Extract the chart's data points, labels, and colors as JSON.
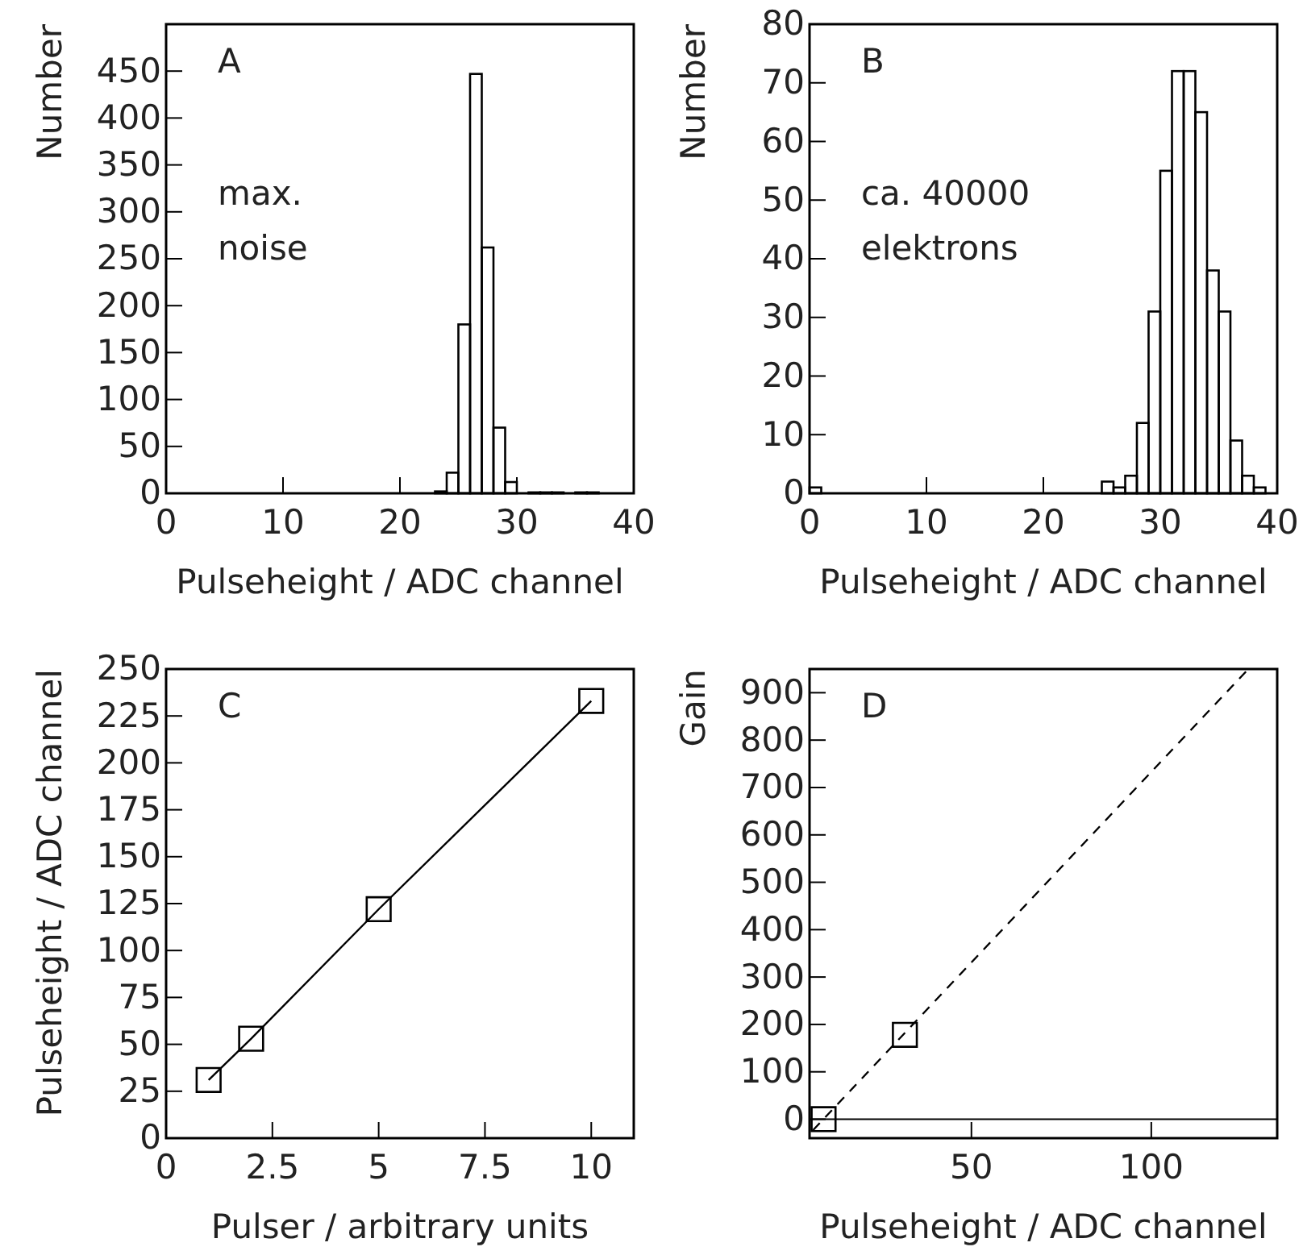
{
  "chart_data": [
    {
      "type": "histogram",
      "xlabel": "Pulseheight / ADC channel",
      "ylabel": "Number",
      "annotations": [
        "A",
        "max.",
        "noise"
      ],
      "bins": [
        0,
        1,
        2,
        3,
        4,
        5,
        6,
        7,
        8,
        9,
        10,
        11,
        12,
        13,
        14,
        15,
        16,
        17,
        18,
        19,
        20,
        21,
        22,
        23,
        24,
        25,
        26,
        27,
        28,
        29,
        30,
        31,
        32,
        33,
        34,
        35,
        36,
        37,
        38,
        39,
        40
      ],
      "values": [
        0,
        0,
        0,
        0,
        0,
        0,
        0,
        0,
        0,
        0,
        0,
        0,
        0,
        0,
        0,
        0,
        0,
        0,
        0,
        0,
        0,
        0,
        0,
        2,
        22,
        180,
        447,
        262,
        70,
        12,
        0,
        1,
        1,
        1,
        0,
        1,
        1,
        0,
        0,
        0
      ],
      "color": "#000000",
      "xlim": [
        0,
        40
      ],
      "xticks": [
        0,
        10,
        20,
        30,
        40
      ],
      "ylim": [
        0,
        500
      ],
      "yticks": [
        0,
        50,
        100,
        150,
        200,
        250,
        300,
        350,
        400,
        450
      ]
    },
    {
      "type": "histogram",
      "xlabel": "Pulseheight / ADC channel",
      "ylabel": "Number",
      "annotations": [
        "B",
        "ca. 40000",
        "elektrons"
      ],
      "bins": [
        0,
        1,
        2,
        3,
        4,
        5,
        6,
        7,
        8,
        9,
        10,
        11,
        12,
        13,
        14,
        15,
        16,
        17,
        18,
        19,
        20,
        21,
        22,
        23,
        24,
        25,
        26,
        27,
        28,
        29,
        30,
        31,
        32,
        33,
        34,
        35,
        36,
        37,
        38,
        39,
        40
      ],
      "values": [
        1,
        0,
        0,
        0,
        0,
        0,
        0,
        0,
        0,
        0,
        0,
        0,
        0,
        0,
        0,
        0,
        0,
        0,
        0,
        0,
        0,
        0,
        0,
        0,
        0,
        2,
        1,
        3,
        12,
        31,
        55,
        72,
        72,
        65,
        38,
        31,
        9,
        3,
        1,
        0
      ],
      "color": "#000000",
      "xlim": [
        0,
        40
      ],
      "xticks": [
        0,
        10,
        20,
        30,
        40
      ],
      "ylim": [
        0,
        80
      ],
      "yticks": [
        0,
        10,
        20,
        30,
        40,
        50,
        60,
        70,
        80
      ]
    },
    {
      "type": "line",
      "xlabel": "Pulser / arbitrary units",
      "ylabel": "Pulseheight / ADC channel",
      "annotations": [
        "C"
      ],
      "x": [
        1,
        2,
        5,
        10
      ],
      "values": [
        31,
        53,
        122,
        233
      ],
      "color": "#000000",
      "marker": "square",
      "xlim": [
        0,
        11
      ],
      "xticks": [
        0,
        2.5,
        5,
        7.5,
        10
      ],
      "ylim": [
        0,
        250
      ],
      "yticks": [
        0,
        25,
        50,
        75,
        100,
        125,
        150,
        175,
        200,
        225,
        250
      ]
    },
    {
      "type": "scatter",
      "xlabel": "Pulseheight / ADC channel",
      "ylabel": "Gain",
      "annotations": [
        "D"
      ],
      "series": [
        {
          "x": [
            8.9,
            31.5
          ],
          "values": [
            0,
            178
          ],
          "color": "#000000",
          "marker": "square"
        },
        {
          "type": "line",
          "x": [
            6,
            127
          ],
          "values": [
            -23,
            950
          ],
          "color": "#000000",
          "marker": "none",
          "line_style": "dashed"
        }
      ],
      "ref_lines": [
        {
          "axis": "y",
          "value": 0,
          "color": "#000000"
        }
      ],
      "xlim": [
        5,
        135
      ],
      "xticks": [
        50,
        100
      ],
      "ylim": [
        -40,
        950
      ],
      "yticks": [
        0,
        100,
        200,
        300,
        400,
        500,
        600,
        700,
        800,
        900
      ]
    }
  ]
}
